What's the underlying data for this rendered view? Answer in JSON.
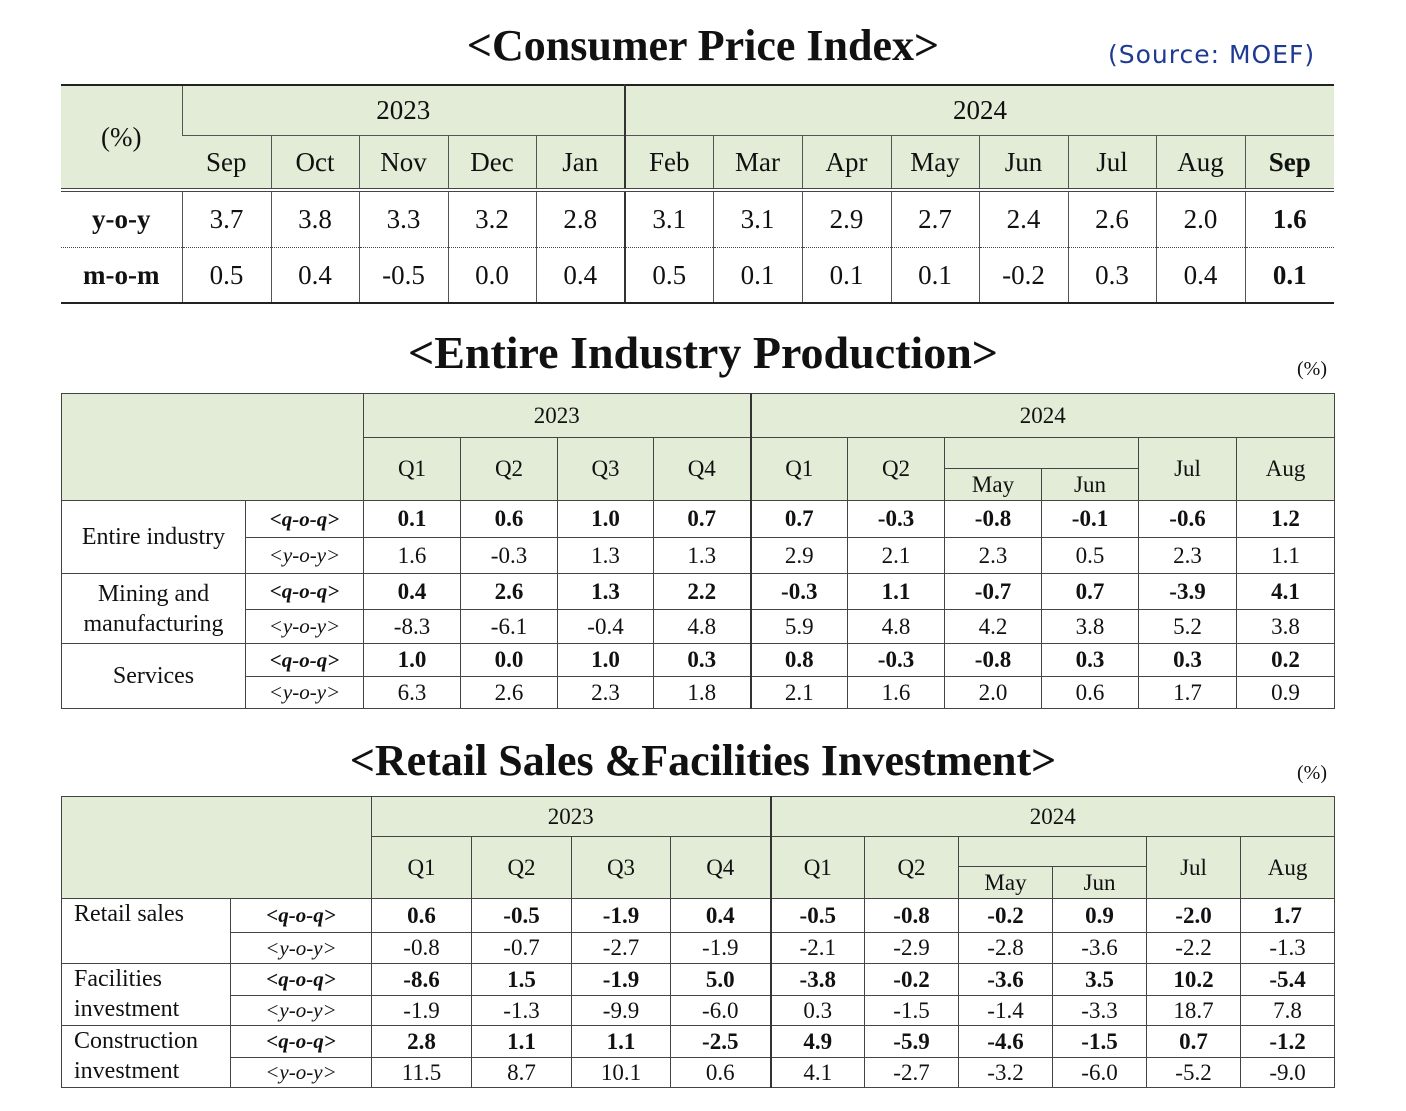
{
  "cpi": {
    "title": "<Consumer Price Index>",
    "source": "(Source: MOEF)",
    "unit_label": "(%)",
    "years": [
      "2023",
      "2024"
    ],
    "months": [
      "Sep",
      "Oct",
      "Nov",
      "Dec",
      "Jan",
      "Feb",
      "Mar",
      "Apr",
      "May",
      "Jun",
      "Jul",
      "Aug",
      "Sep"
    ],
    "rows": [
      {
        "label": "y-o-y",
        "values": [
          "3.7",
          "3.8",
          "3.3",
          "3.2",
          "2.8",
          "3.1",
          "3.1",
          "2.9",
          "2.7",
          "2.4",
          "2.6",
          "2.0",
          "1.6"
        ]
      },
      {
        "label": "m-o-m",
        "values": [
          "0.5",
          "0.4",
          "-0.5",
          "0.0",
          "0.4",
          "0.5",
          "0.1",
          "0.1",
          "0.1",
          "-0.2",
          "0.3",
          "0.4",
          "0.1"
        ]
      }
    ]
  },
  "industry": {
    "title": "<Entire Industry Production>",
    "unit": "(%)",
    "years": [
      "2023",
      "2024"
    ],
    "quarters": [
      "Q1",
      "Q2",
      "Q3",
      "Q4",
      "Q1",
      "Q2"
    ],
    "months": [
      "May",
      "Jun",
      "Jul",
      "Aug"
    ],
    "rows": [
      {
        "label": "Entire industry",
        "qoq_label": "<q-o-q>",
        "qoq": [
          "0.1",
          "0.6",
          "1.0",
          "0.7",
          "0.7",
          "-0.3",
          "-0.8",
          "-0.1",
          "-0.6",
          "1.2"
        ],
        "yoy_label": "<y-o-y>",
        "yoy": [
          "1.6",
          "-0.3",
          "1.3",
          "1.3",
          "2.9",
          "2.1",
          "2.3",
          "0.5",
          "2.3",
          "1.1"
        ]
      },
      {
        "label": "Mining and manufacturing",
        "qoq_label": "<q-o-q>",
        "qoq": [
          "0.4",
          "2.6",
          "1.3",
          "2.2",
          "-0.3",
          "1.1",
          "-0.7",
          "0.7",
          "-3.9",
          "4.1"
        ],
        "yoy_label": "<y-o-y>",
        "yoy": [
          "-8.3",
          "-6.1",
          "-0.4",
          "4.8",
          "5.9",
          "4.8",
          "4.2",
          "3.8",
          "5.2",
          "3.8"
        ]
      },
      {
        "label": "Services",
        "qoq_label": "<q-o-q>",
        "qoq": [
          "1.0",
          "0.0",
          "1.0",
          "0.3",
          "0.8",
          "-0.3",
          "-0.8",
          "0.3",
          "0.3",
          "0.2"
        ],
        "yoy_label": "<y-o-y>",
        "yoy": [
          "6.3",
          "2.6",
          "2.3",
          "1.8",
          "2.1",
          "1.6",
          "2.0",
          "0.6",
          "1.7",
          "0.9"
        ]
      }
    ]
  },
  "retail": {
    "title": "<Retail Sales &Facilities Investment>",
    "unit": "(%)",
    "years": [
      "2023",
      "2024"
    ],
    "quarters": [
      "Q1",
      "Q2",
      "Q3",
      "Q4",
      "Q1",
      "Q2"
    ],
    "months": [
      "May",
      "Jun",
      "Jul",
      "Aug"
    ],
    "rows": [
      {
        "label": "Retail sales",
        "qoq_label": "<q-o-q>",
        "qoq": [
          "0.6",
          "-0.5",
          "-1.9",
          "0.4",
          "-0.5",
          "-0.8",
          "-0.2",
          "0.9",
          "-2.0",
          "1.7"
        ],
        "yoy_label": "<y-o-y>",
        "yoy": [
          "-0.8",
          "-0.7",
          "-2.7",
          "-1.9",
          "-2.1",
          "-2.9",
          "-2.8",
          "-3.6",
          "-2.2",
          "-1.3"
        ]
      },
      {
        "label": "Facilities investment",
        "qoq_label": "<q-o-q>",
        "qoq": [
          "-8.6",
          "1.5",
          "-1.9",
          "5.0",
          "-3.8",
          "-0.2",
          "-3.6",
          "3.5",
          "10.2",
          "-5.4"
        ],
        "yoy_label": "<y-o-y>",
        "yoy": [
          "-1.9",
          "-1.3",
          "-9.9",
          "-6.0",
          "0.3",
          "-1.5",
          "-1.4",
          "-3.3",
          "18.7",
          "7.8"
        ]
      },
      {
        "label": "Construction investment",
        "qoq_label": "<q-o-q>",
        "qoq": [
          "2.8",
          "1.1",
          "1.1",
          "-2.5",
          "4.9",
          "-5.9",
          "-4.6",
          "-1.5",
          "0.7",
          "-1.2"
        ],
        "yoy_label": "<y-o-y>",
        "yoy": [
          "11.5",
          "8.7",
          "10.1",
          "0.6",
          "4.1",
          "-2.7",
          "-3.2",
          "-6.0",
          "-5.2",
          "-9.0"
        ]
      }
    ]
  }
}
